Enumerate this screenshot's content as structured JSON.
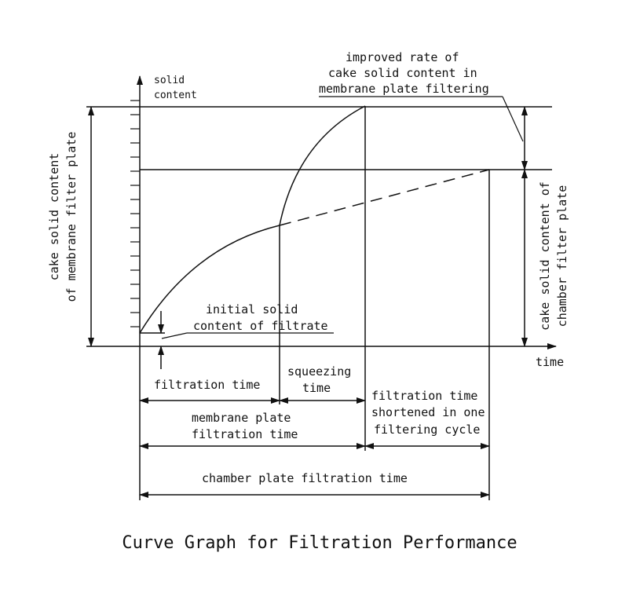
{
  "axes": {
    "y_label_line1": "solid",
    "y_label_line2": "content",
    "x_label": "time"
  },
  "labels": {
    "improved_line1": "improved rate of",
    "improved_line2": "cake solid content in",
    "improved_line3": "membrane plate filtering",
    "membrane_cake_line1": "cake solid content",
    "membrane_cake_line2": "of membrane filter plate",
    "chamber_cake_line1": "cake solid content of",
    "chamber_cake_line2": "chamber filter plate",
    "initial_line1": "initial solid",
    "initial_line2": "content of filtrate"
  },
  "durations": {
    "filtration_time": "filtration time",
    "squeezing_line1": "squeezing",
    "squeezing_line2": "time",
    "membrane_line1": "membrane plate",
    "membrane_line2": "filtration time",
    "shortened_line1": "filtration time",
    "shortened_line2": "shortened in one",
    "shortened_line3": "filtering cycle",
    "chamber_total": "chamber plate filtration time"
  },
  "caption": "Curve Graph for Filtration Performance",
  "colors": {
    "ink": "#111111",
    "background": "#ffffff"
  }
}
